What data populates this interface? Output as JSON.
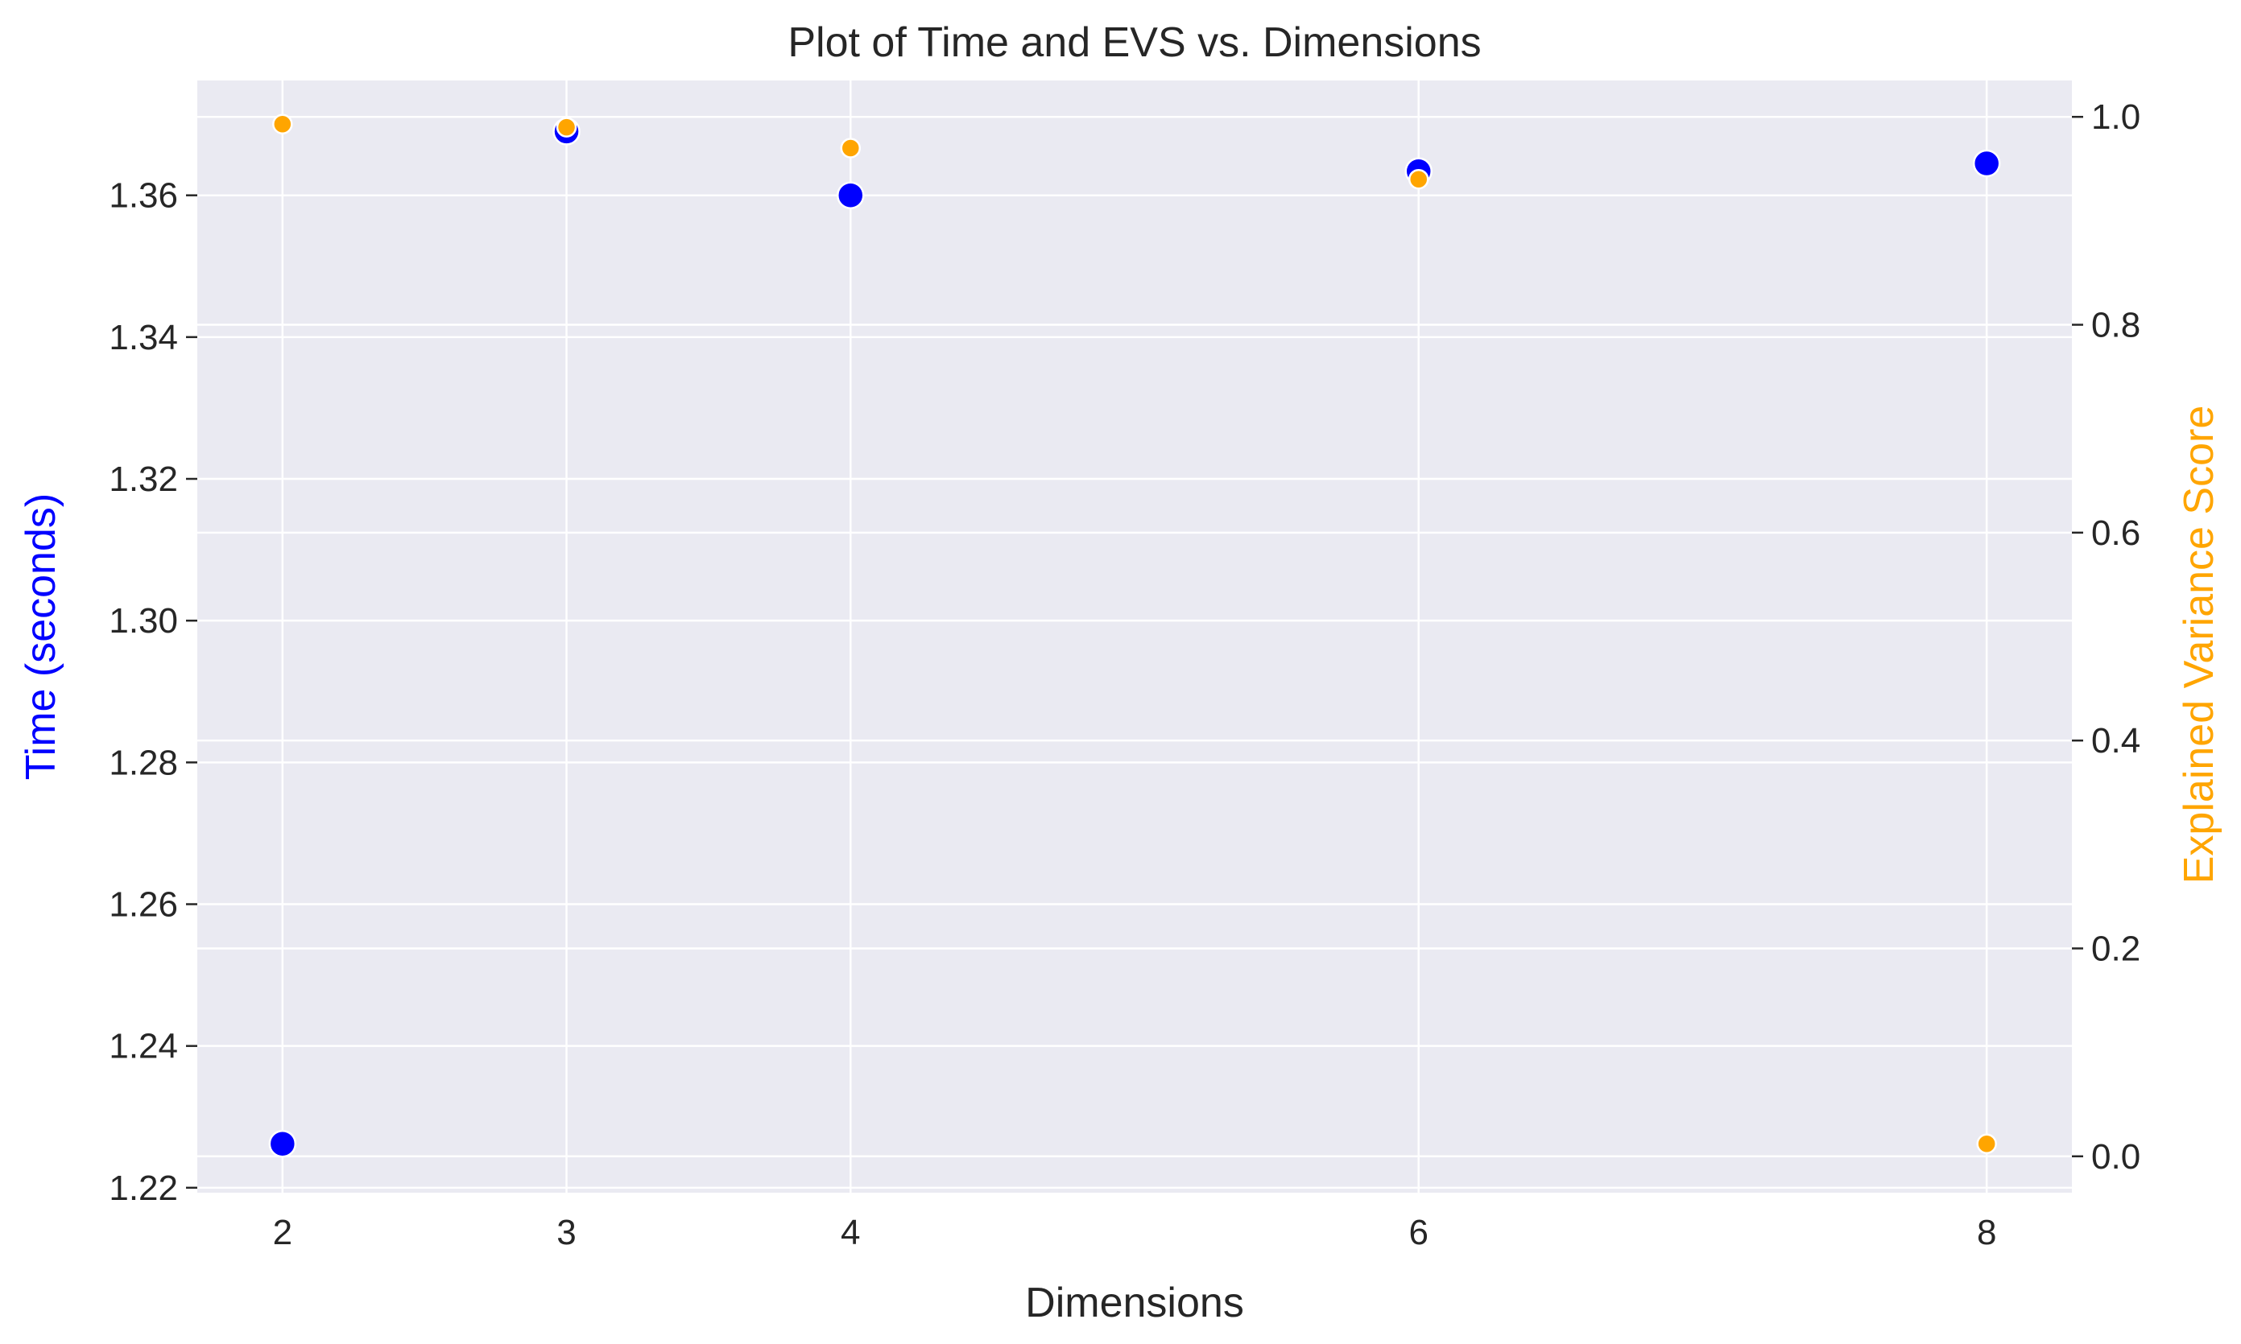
{
  "chart_data": {
    "type": "scatter",
    "title": "Plot of Time and EVS vs. Dimensions",
    "xlabel": "Dimensions",
    "ylabel": "Time (seconds)",
    "ylabel_right": "Explained Variance Score",
    "x_ticks": [
      2,
      3,
      4,
      6,
      8
    ],
    "xlim": [
      1.7,
      8.3
    ],
    "ylim_left": [
      1.2193,
      1.3762
    ],
    "ylim_right": [
      -0.035,
      1.035
    ],
    "y_ticks_left": [
      "1.22",
      "1.24",
      "1.26",
      "1.28",
      "1.30",
      "1.32",
      "1.34",
      "1.36"
    ],
    "y_ticks_right": [
      "0.0",
      "0.2",
      "0.4",
      "0.6",
      "0.8",
      "1.0"
    ],
    "grid": true,
    "colors": {
      "time": "#0000ff",
      "evs": "#ffa500",
      "background": "#eaeaf2",
      "grid": "#ffffff",
      "text": "#262626"
    },
    "series": [
      {
        "axis": "left",
        "x": [
          2,
          3,
          4,
          6,
          8
        ],
        "y": [
          1.2262,
          1.369,
          1.36,
          1.3634,
          1.3645
        ]
      },
      {
        "axis": "right",
        "x": [
          2,
          3,
          4,
          6,
          8
        ],
        "y": [
          0.993,
          0.99,
          0.97,
          0.94,
          0.012
        ]
      }
    ]
  }
}
